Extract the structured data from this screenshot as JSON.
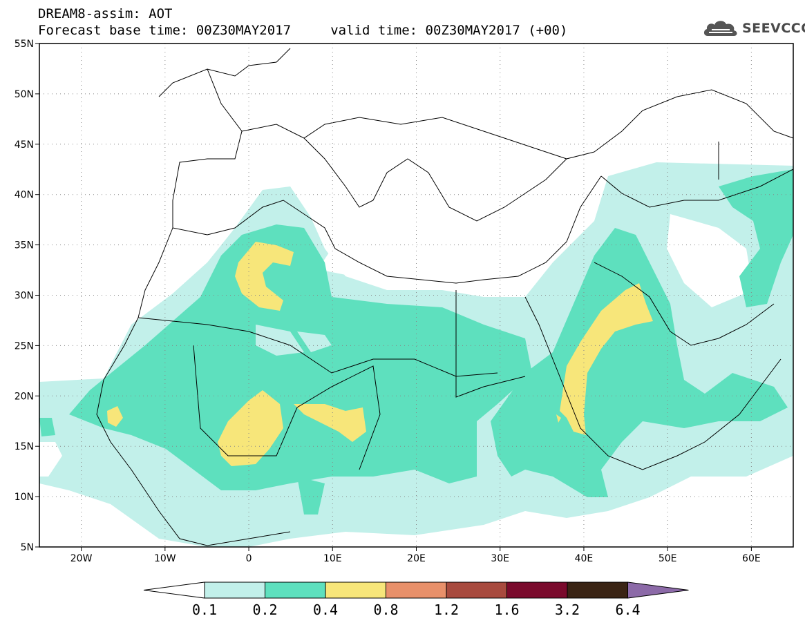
{
  "title_line1": "DREAM8-assim: AOT",
  "title_line2": "Forecast base time: 00Z30MAY2017     valid time: 00Z30MAY2017 (+00)",
  "logo_text": "SEEVCCC",
  "map": {
    "lon_range": [
      -25,
      65
    ],
    "lat_range": [
      5,
      55
    ],
    "lat_ticks": [
      {
        "v": 55,
        "label": "55N"
      },
      {
        "v": 50,
        "label": "50N"
      },
      {
        "v": 45,
        "label": "45N"
      },
      {
        "v": 40,
        "label": "40N"
      },
      {
        "v": 35,
        "label": "35N"
      },
      {
        "v": 30,
        "label": "30N"
      },
      {
        "v": 25,
        "label": "25N"
      },
      {
        "v": 20,
        "label": "20N"
      },
      {
        "v": 15,
        "label": "15N"
      },
      {
        "v": 10,
        "label": "10N"
      },
      {
        "v": 5,
        "label": "5N"
      }
    ],
    "lon_ticks": [
      {
        "v": -20,
        "label": "20W"
      },
      {
        "v": -10,
        "label": "10W"
      },
      {
        "v": 0,
        "label": "0"
      },
      {
        "v": 10,
        "label": "10E"
      },
      {
        "v": 20,
        "label": "20E"
      },
      {
        "v": 30,
        "label": "30E"
      },
      {
        "v": 40,
        "label": "40E"
      },
      {
        "v": 50,
        "label": "50E"
      },
      {
        "v": 60,
        "label": "60E"
      }
    ]
  },
  "colorbar": {
    "levels": [
      "0.1",
      "0.2",
      "0.4",
      "0.8",
      "1.2",
      "1.6",
      "3.2",
      "6.4"
    ],
    "colors": [
      "#ffffff",
      "#c2f0ea",
      "#5ee0be",
      "#f7e67a",
      "#e8906a",
      "#a84a3e",
      "#7a0a2c",
      "#3a2414",
      "#8c6aa8"
    ]
  },
  "shading_colors": {
    "aot_0_1": "#c2f0ea",
    "aot_0_2": "#5ee0be",
    "aot_0_4": "#f7e67a"
  }
}
